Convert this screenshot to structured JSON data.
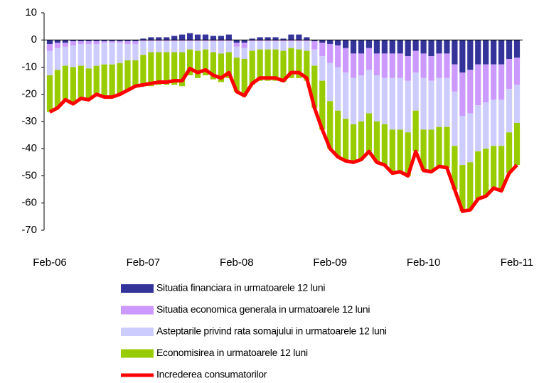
{
  "chart_data": {
    "type": "bar",
    "stacked": true,
    "categories": [
      "Feb-06",
      null,
      null,
      null,
      null,
      null,
      null,
      null,
      null,
      null,
      null,
      null,
      "Feb-07",
      null,
      null,
      null,
      null,
      null,
      null,
      null,
      null,
      null,
      null,
      null,
      "Feb-08",
      null,
      null,
      null,
      null,
      null,
      null,
      null,
      null,
      null,
      null,
      null,
      "Feb-09",
      null,
      null,
      null,
      null,
      null,
      null,
      null,
      null,
      null,
      null,
      null,
      "Feb-10",
      null,
      null,
      null,
      null,
      null,
      null,
      null,
      null,
      null,
      null,
      null,
      "Feb-11"
    ],
    "ylim": [
      -70,
      10
    ],
    "yticks": [
      10,
      0,
      -10,
      -20,
      -30,
      -40,
      -50,
      -60,
      -70
    ],
    "series": [
      {
        "name": "Situatia financiara in urmatoarele 12 luni",
        "color": "#333399",
        "values": [
          -1.5,
          -1,
          -1,
          -0.5,
          -0.5,
          -0.5,
          -0.5,
          -0.5,
          -0.5,
          -0.5,
          -0.5,
          -0.5,
          0.5,
          1,
          1,
          1,
          1.5,
          2,
          2.5,
          2,
          2,
          1.5,
          1.5,
          2,
          -1,
          -1,
          0.5,
          1,
          1,
          1,
          0.5,
          2,
          2,
          1,
          -0.5,
          -1,
          -1.5,
          -2,
          -3,
          -5,
          -5,
          -3,
          -5,
          -5,
          -5,
          -5,
          -6,
          -4,
          -5,
          -6,
          -5,
          -5,
          -9,
          -12,
          -11,
          -9,
          -9,
          -9,
          -9,
          -7,
          -6.5
        ]
      },
      {
        "name": "Situatia economica generala in urmatoarele 12 luni",
        "color": "#cc99ff",
        "values": [
          -2.5,
          -2,
          -1.5,
          -1.5,
          -1,
          -1,
          -1,
          -0.5,
          -0.5,
          -0.5,
          -1,
          -1,
          -0.5,
          -0.5,
          -0.5,
          -0.5,
          -0.5,
          -0.5,
          -0.5,
          -0.5,
          -0.5,
          -0.5,
          -0.5,
          -0.5,
          -1.5,
          -2,
          -0.5,
          -0.5,
          -0.5,
          -0.5,
          -0.5,
          -0.5,
          -0.5,
          -0.5,
          -3,
          -5,
          -7,
          -8,
          -9,
          -9,
          -8,
          -8,
          -8,
          -9,
          -9,
          -9,
          -9,
          -8,
          -9,
          -9,
          -9,
          -9,
          -10,
          -16,
          -16,
          -15,
          -14,
          -13,
          -13,
          -11,
          -10
        ]
      },
      {
        "name": "Asteptarile privind rata somajului in urmatoarele 12 luni",
        "color": "#ccccff",
        "values": [
          -9,
          -8,
          -7,
          -8,
          -8,
          -9,
          -8,
          -8,
          -8,
          -7.5,
          -6,
          -6,
          -5,
          -4,
          -4,
          -4,
          -4,
          -4,
          -3,
          -3.5,
          -3,
          -4,
          -4.5,
          -4,
          -4,
          -4,
          -3.5,
          -3,
          -3,
          -3,
          -3.5,
          -2.5,
          -3,
          -3.5,
          -6,
          -9,
          -14,
          -16,
          -17,
          -17,
          -17,
          -16,
          -17,
          -17,
          -19,
          -19,
          -19,
          -14,
          -19,
          -18,
          -18,
          -18,
          -20,
          -18,
          -18,
          -17,
          -17,
          -17,
          -17,
          -16,
          -14
        ]
      },
      {
        "name": "Economisirea in urmatoarele 12 luni",
        "color": "#99cc00",
        "values": [
          -13.5,
          -14,
          -12.5,
          -13.5,
          -12,
          -11.5,
          -10.5,
          -12,
          -12,
          -11.5,
          -11,
          -9.5,
          -11.5,
          -12.5,
          -12,
          -12,
          -12,
          -12.5,
          -9.5,
          -10,
          -9.5,
          -10,
          -10.5,
          -9.5,
          -12.5,
          -13.5,
          -12.5,
          -11.5,
          -11.5,
          -11.5,
          -11.5,
          -11,
          -10.5,
          -11,
          -15.5,
          -18,
          -17.5,
          -17,
          -15.5,
          -14,
          -14,
          -14,
          -15,
          -15,
          -16,
          -15.5,
          -16,
          -15,
          -15,
          -15.5,
          -14.5,
          -15,
          -16,
          -17,
          -17.5,
          -17.5,
          -17.5,
          -15.5,
          -16.5,
          -15,
          -15.5
        ]
      },
      {
        "name": "Increderea consumatorilor",
        "color": "#ff0000",
        "type": "line",
        "values": [
          -26.5,
          -25,
          -22,
          -23.5,
          -21.5,
          -22,
          -20,
          -21,
          -21,
          -20,
          -18.5,
          -17,
          -16.5,
          -16,
          -15.5,
          -15.5,
          -15,
          -15,
          -10.5,
          -12,
          -11,
          -13,
          -14,
          -12,
          -19,
          -20.5,
          -16,
          -14,
          -14,
          -14,
          -15,
          -12,
          -12,
          -14,
          -25,
          -33,
          -40,
          -43,
          -44.5,
          -45,
          -44,
          -41,
          -45,
          -46,
          -49,
          -48.5,
          -50,
          -41,
          -48,
          -48.5,
          -46.5,
          -47,
          -55,
          -63,
          -62.5,
          -58.5,
          -57.5,
          -54.5,
          -55.5,
          -49,
          -46
        ]
      }
    ]
  }
}
